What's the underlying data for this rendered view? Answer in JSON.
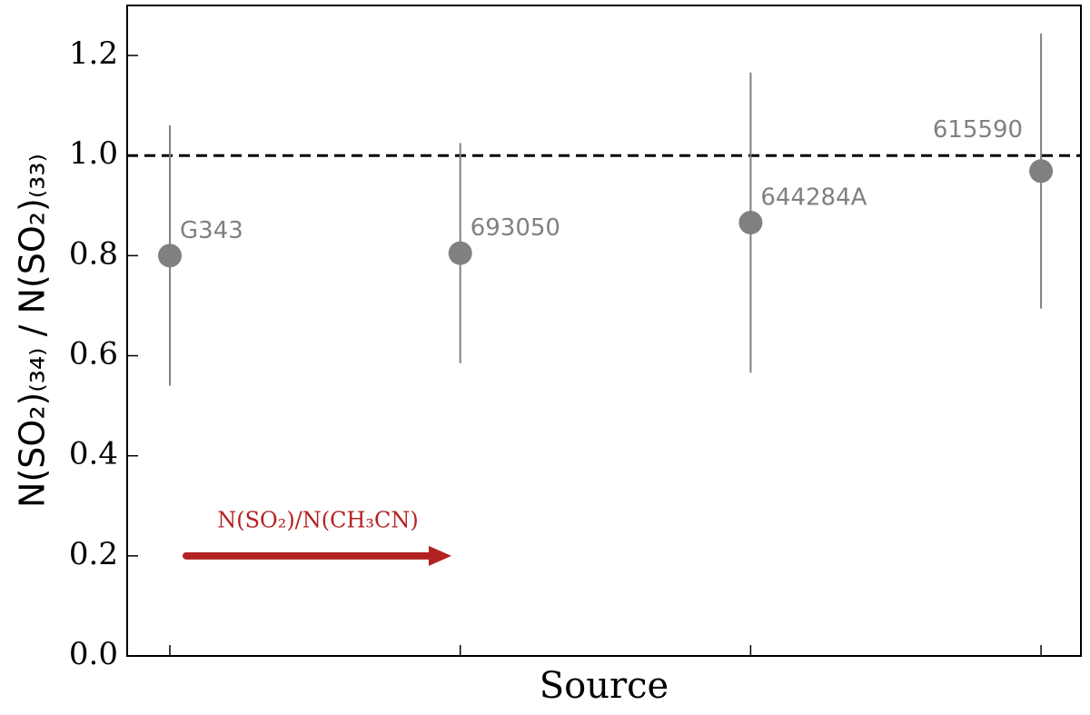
{
  "chart_data": {
    "type": "errorbar",
    "x_label": "Source",
    "y_label": "N(SO₂)₍₃₄₎ / N(SO₂)₍₃₃₎",
    "categories": [
      "G343",
      "693050",
      "644284A",
      "615590"
    ],
    "values": [
      0.8,
      0.805,
      0.866,
      0.969
    ],
    "errors": [
      0.26,
      0.22,
      0.3,
      0.275
    ],
    "color": "#808080",
    "ylim": [
      0,
      1.3
    ],
    "yticks": [
      {
        "value": 0,
        "label": "0.0"
      },
      0.2,
      0.4,
      0.6,
      0.8,
      {
        "value": 1,
        "label": "1.0"
      },
      1.2
    ],
    "reference_line": 1,
    "annotation": {
      "text": "N(SO₂)/N(CH₃CN)",
      "color": "#b22222",
      "y": 0.2
    }
  }
}
